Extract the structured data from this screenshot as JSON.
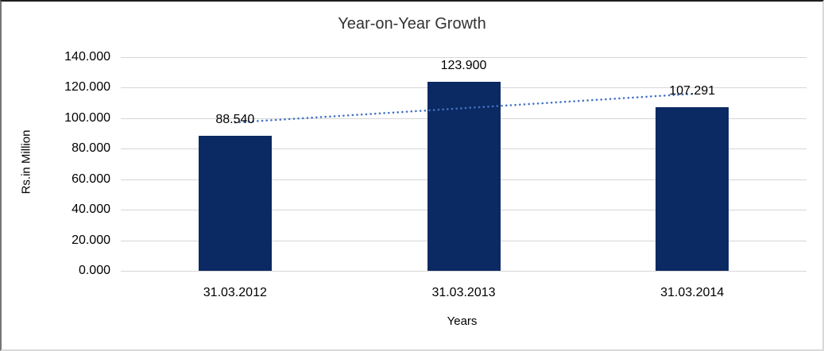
{
  "chart_data": {
    "type": "bar",
    "title": "Year-on-Year Growth",
    "xlabel": "Years",
    "ylabel": "Rs.in Million",
    "categories": [
      "31.03.2012",
      "31.03.2013",
      "31.03.2014"
    ],
    "values": [
      88.54,
      123.9,
      107.291
    ],
    "data_labels": [
      "88.540",
      "123.900",
      "107.291"
    ],
    "ylim": [
      0,
      140
    ],
    "y_ticks": [
      {
        "value": 0,
        "label": "0.000"
      },
      {
        "value": 20,
        "label": "20.000"
      },
      {
        "value": 40,
        "label": "40.000"
      },
      {
        "value": 60,
        "label": "60.000"
      },
      {
        "value": 80,
        "label": "80.000"
      },
      {
        "value": 100,
        "label": "100.000"
      },
      {
        "value": 120,
        "label": "120.000"
      },
      {
        "value": 140,
        "label": "140.000"
      }
    ],
    "grid": true,
    "legend": "none",
    "trendline": {
      "type": "linear",
      "style": "dotted",
      "color": "#4472C4"
    },
    "colors": {
      "bar": "#0b2a63",
      "gridline": "#d6d6d6",
      "text": "#000000",
      "title": "#333333"
    }
  }
}
